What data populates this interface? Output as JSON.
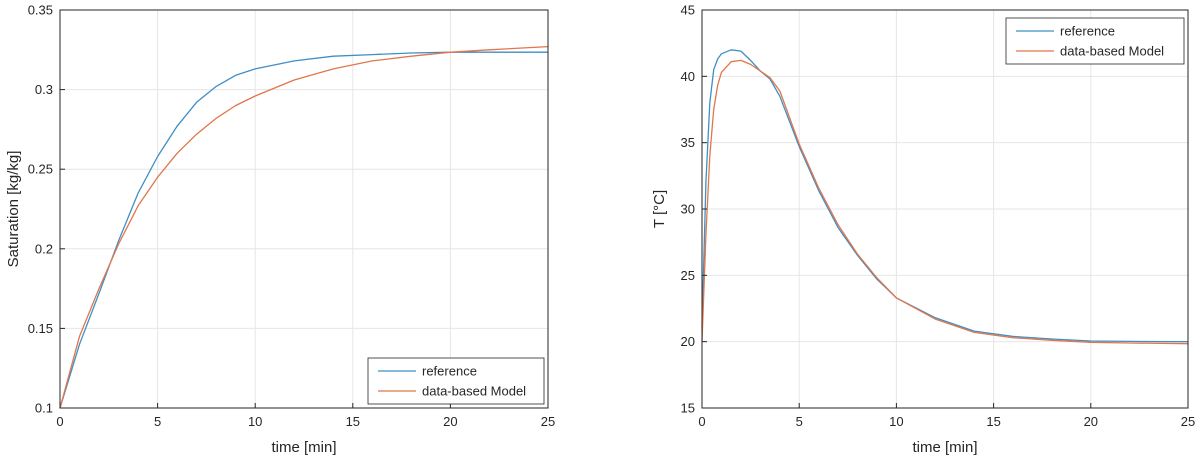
{
  "chart_data": [
    {
      "type": "line",
      "xlabel": "time [min]",
      "ylabel": "Saturation [kg/kg]",
      "xlim": [
        0,
        25
      ],
      "ylim": [
        0.1,
        0.35
      ],
      "xticks": [
        "0",
        "5",
        "10",
        "15",
        "20",
        "25"
      ],
      "yticks": [
        "0.1",
        "0.15",
        "0.2",
        "0.25",
        "0.3",
        "0.35"
      ],
      "grid": true,
      "legend_position": "bottom-right",
      "series": [
        {
          "name": "reference",
          "color": "#3f8fc4",
          "x": [
            0,
            1,
            2,
            3,
            4,
            5,
            6,
            7,
            8,
            9,
            10,
            12,
            14,
            16,
            18,
            20,
            22,
            25
          ],
          "y": [
            0.1,
            0.14,
            0.172,
            0.205,
            0.235,
            0.258,
            0.277,
            0.292,
            0.302,
            0.309,
            0.313,
            0.318,
            0.321,
            0.322,
            0.323,
            0.3235,
            0.3235,
            0.3235
          ]
        },
        {
          "name": "data-based Model",
          "color": "#e2764a",
          "x": [
            0,
            1,
            2,
            3,
            4,
            5,
            6,
            7,
            8,
            9,
            10,
            12,
            14,
            16,
            18,
            20,
            22,
            25
          ],
          "y": [
            0.1,
            0.145,
            0.175,
            0.203,
            0.227,
            0.245,
            0.26,
            0.272,
            0.282,
            0.29,
            0.296,
            0.306,
            0.313,
            0.318,
            0.321,
            0.3235,
            0.325,
            0.327
          ]
        }
      ]
    },
    {
      "type": "line",
      "xlabel": "time [min]",
      "ylabel": "T [°C]",
      "xlim": [
        0,
        25
      ],
      "ylim": [
        15,
        45
      ],
      "xticks": [
        "0",
        "5",
        "10",
        "15",
        "20",
        "25"
      ],
      "yticks": [
        "15",
        "20",
        "25",
        "30",
        "35",
        "40",
        "45"
      ],
      "grid": true,
      "legend_position": "top-right",
      "series": [
        {
          "name": "reference",
          "color": "#3f8fc4",
          "x": [
            0,
            0.2,
            0.4,
            0.6,
            0.8,
            1,
            1.5,
            2,
            2.5,
            3,
            3.5,
            4,
            5,
            6,
            7,
            8,
            9,
            10,
            12,
            14,
            16,
            18,
            20,
            22,
            25
          ],
          "y": [
            21,
            32,
            38,
            40.5,
            41.3,
            41.7,
            42,
            41.9,
            41.2,
            40.4,
            39.8,
            38.5,
            34.7,
            31.4,
            28.6,
            26.5,
            24.7,
            23.3,
            21.8,
            20.8,
            20.4,
            20.2,
            20.05,
            20.02,
            20.0
          ]
        },
        {
          "name": "data-based Model",
          "color": "#e2764a",
          "x": [
            0,
            0.2,
            0.4,
            0.6,
            0.8,
            1,
            1.5,
            2,
            2.5,
            3,
            3.5,
            4,
            5,
            6,
            7,
            8,
            9,
            10,
            12,
            14,
            16,
            18,
            20,
            22,
            25
          ],
          "y": [
            20,
            28,
            34,
            37.5,
            39.3,
            40.3,
            41.1,
            41.2,
            40.9,
            40.4,
            39.9,
            38.9,
            34.9,
            31.6,
            28.8,
            26.6,
            24.8,
            23.3,
            21.7,
            20.7,
            20.3,
            20.1,
            19.95,
            19.9,
            19.85
          ]
        }
      ]
    }
  ]
}
